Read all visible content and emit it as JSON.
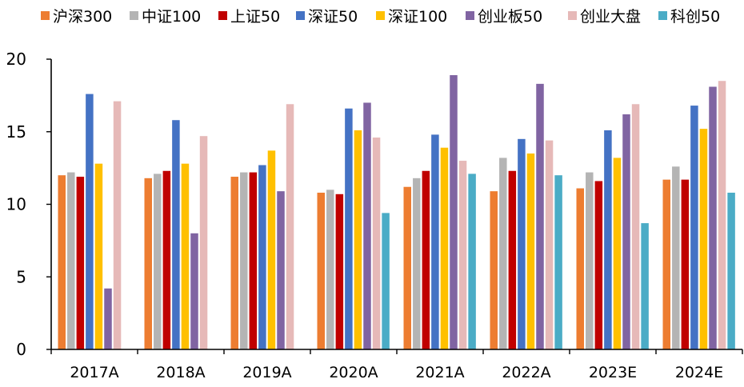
{
  "chart_data": {
    "type": "bar",
    "title": "",
    "xlabel": "",
    "ylabel": "",
    "categories": [
      "2017A",
      "2018A",
      "2019A",
      "2020A",
      "2021A",
      "2022A",
      "2023E",
      "2024E"
    ],
    "ylim": [
      0,
      20
    ],
    "yticks": [
      "0",
      "5",
      "10",
      "15",
      "20"
    ],
    "ytick_values": [
      0,
      5,
      10,
      15,
      20
    ],
    "grid": false,
    "legend_position": "top",
    "series": [
      {
        "name": "沪深300",
        "color": "#ED7D31",
        "values": [
          12.0,
          11.8,
          11.9,
          10.8,
          11.2,
          10.9,
          11.1,
          11.7
        ]
      },
      {
        "name": "中证100",
        "color": "#B4B4B4",
        "values": [
          12.2,
          12.1,
          12.2,
          11.0,
          11.8,
          13.2,
          12.2,
          12.6
        ]
      },
      {
        "name": "上证50",
        "color": "#C00000",
        "values": [
          11.9,
          12.3,
          12.2,
          10.7,
          12.3,
          12.3,
          11.6,
          11.7
        ]
      },
      {
        "name": "深证50",
        "color": "#4472C4",
        "values": [
          17.6,
          15.8,
          12.7,
          16.6,
          14.8,
          14.5,
          15.1,
          16.8
        ]
      },
      {
        "name": "深证100",
        "color": "#FFC000",
        "values": [
          12.8,
          12.8,
          13.7,
          15.1,
          13.9,
          13.5,
          13.2,
          15.2
        ]
      },
      {
        "name": "创业板50",
        "color": "#8064A2",
        "values": [
          4.2,
          8.0,
          10.9,
          17.0,
          18.9,
          18.3,
          16.2,
          18.1
        ]
      },
      {
        "name": "创业大盘",
        "color": "#E6B9B8",
        "values": [
          17.1,
          14.7,
          16.9,
          14.6,
          13.0,
          14.4,
          16.9,
          18.5
        ]
      },
      {
        "name": "科创50",
        "color": "#4BACC6",
        "values": [
          null,
          null,
          null,
          9.4,
          12.1,
          12.0,
          8.7,
          10.8
        ]
      }
    ]
  }
}
